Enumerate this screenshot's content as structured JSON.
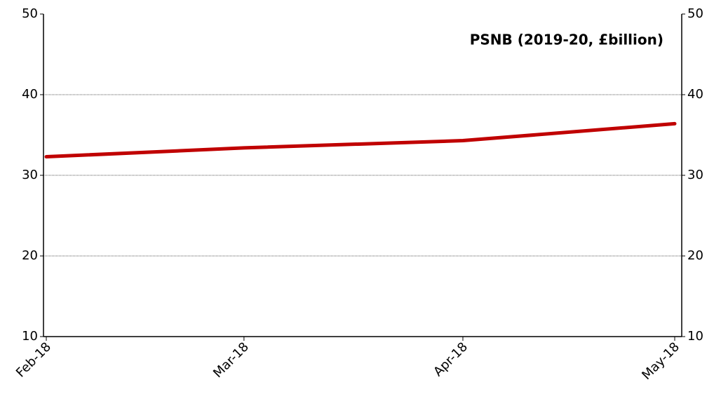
{
  "chart_data": {
    "type": "line",
    "title": "PSNB (2019-20, £billion)",
    "x": [
      "Feb-18",
      "Mar-18",
      "Apr-18",
      "May-18"
    ],
    "series": [
      {
        "name": "PSNB",
        "color": "#c00000",
        "values": [
          32.3,
          33.4,
          34.3,
          36.4
        ]
      }
    ],
    "ylim": [
      10,
      50
    ],
    "yticks": [
      10,
      20,
      30,
      40,
      50
    ],
    "y2lim": [
      10,
      50
    ],
    "y2ticks": [
      10,
      20,
      30,
      40,
      50
    ],
    "grid": true
  }
}
